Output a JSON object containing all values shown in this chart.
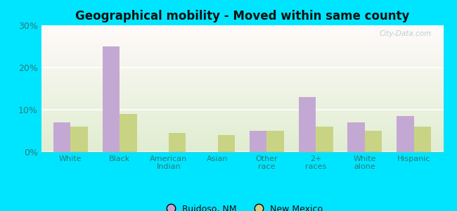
{
  "title": "Geographical mobility - Moved within same county",
  "categories": [
    "White",
    "Black",
    "American\nIndian",
    "Asian",
    "Other\nrace",
    "2+\nraces",
    "White\nalone",
    "Hispanic"
  ],
  "ruidoso_values": [
    7.0,
    25.0,
    0.0,
    0.0,
    5.0,
    13.0,
    7.0,
    8.5
  ],
  "nm_values": [
    6.0,
    9.0,
    4.5,
    4.0,
    5.0,
    6.0,
    5.0,
    6.0
  ],
  "ruidoso_color": "#c4a8d4",
  "nm_color": "#c8d484",
  "ylim": [
    0,
    30
  ],
  "yticks": [
    0,
    10,
    20,
    30
  ],
  "ytick_labels": [
    "0%",
    "10%",
    "20%",
    "30%"
  ],
  "bar_width": 0.35,
  "figure_bg": "#00e5ff",
  "legend_ruidoso": "Ruidoso, NM",
  "legend_nm": "New Mexico",
  "watermark": "City-Data.com"
}
